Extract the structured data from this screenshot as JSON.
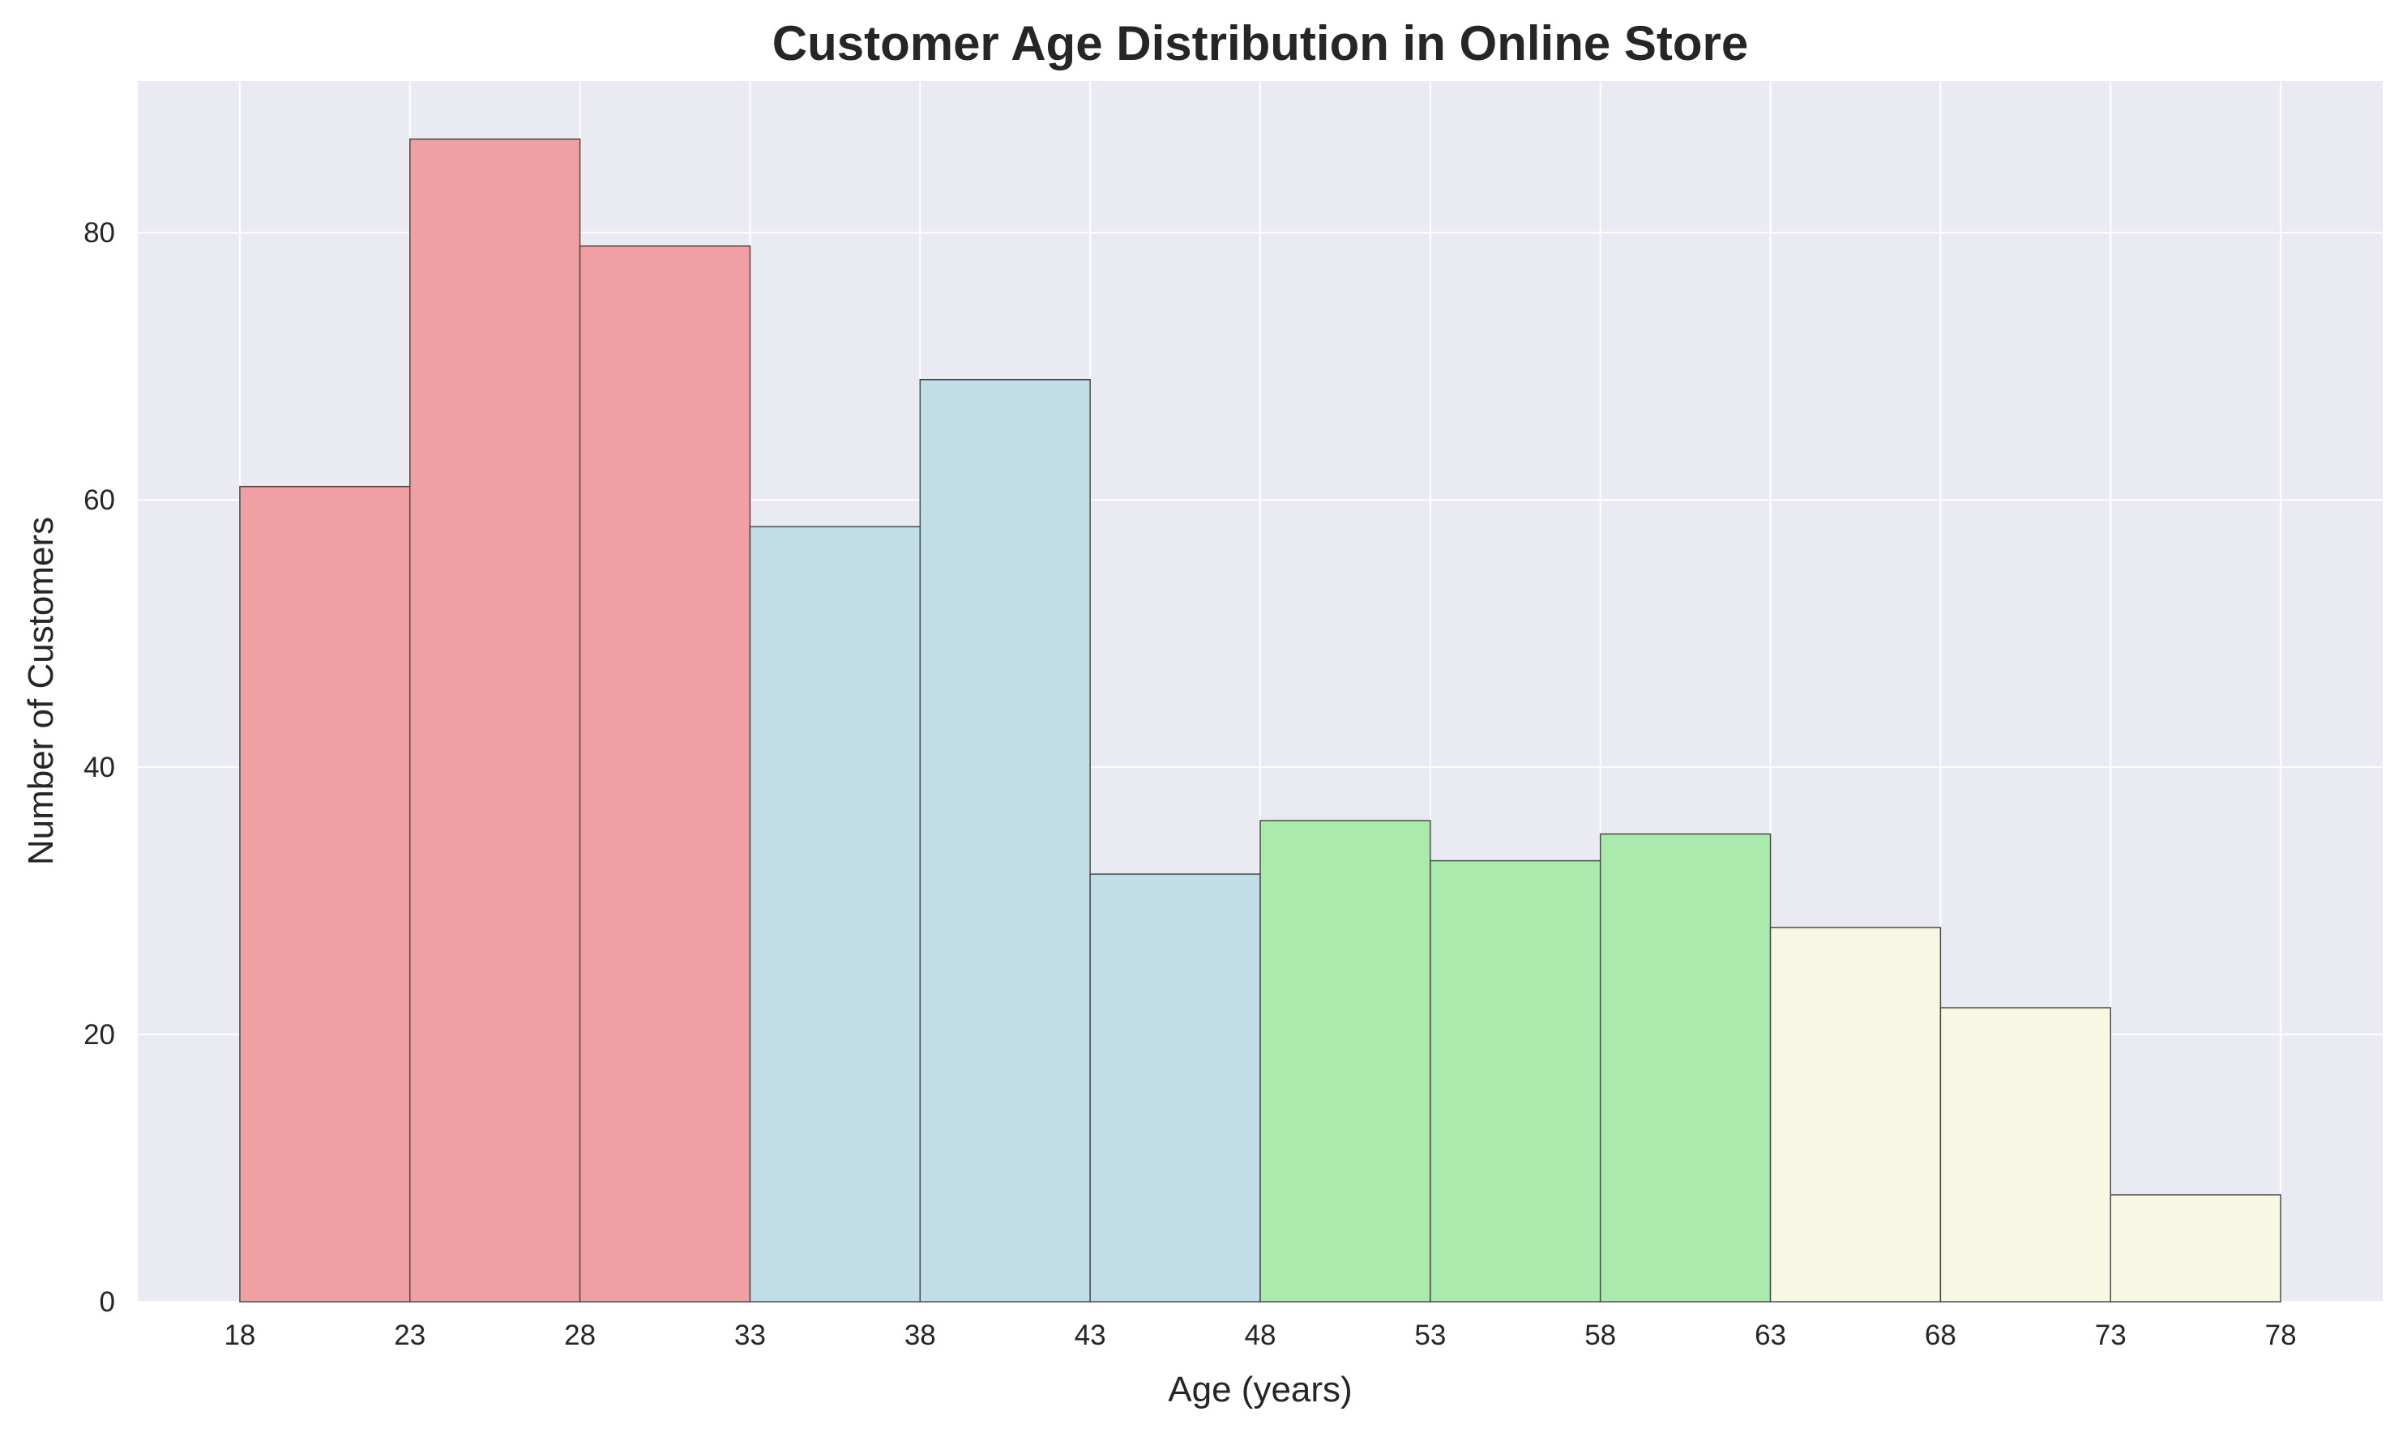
{
  "chart_data": {
    "type": "bar",
    "title": "Customer Age Distribution in Online Store",
    "xlabel": "Age (years)",
    "ylabel": "Number of Customers",
    "bin_edges": [
      18,
      23,
      28,
      33,
      38,
      43,
      48,
      53,
      58,
      63,
      68,
      73,
      78
    ],
    "values": [
      61,
      87,
      79,
      58,
      69,
      32,
      36,
      33,
      35,
      28,
      22,
      8
    ],
    "bar_colors": [
      "#f0a0a3",
      "#f0a0a3",
      "#f0a0a3",
      "#c0dde8",
      "#c0dde8",
      "#c0dde8",
      "#aaeaac",
      "#aaeaac",
      "#aaeaac",
      "#f7f7e3",
      "#f7f7e3",
      "#f7f7e3"
    ],
    "xticks": [
      18,
      23,
      28,
      33,
      38,
      43,
      48,
      53,
      58,
      63,
      68,
      73,
      78
    ],
    "yticks": [
      0,
      20,
      40,
      60,
      80
    ],
    "xlim": [
      15,
      81
    ],
    "ylim": [
      0,
      91.35
    ],
    "grid": true,
    "background_color": "#eaeaf2",
    "edge_color": "#4a4a4a"
  }
}
